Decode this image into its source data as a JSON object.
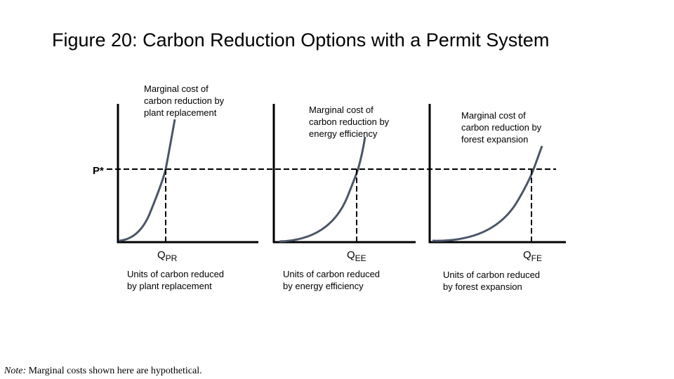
{
  "title": "Figure 20: Carbon Reduction Options with a Permit System",
  "price_label": "P*",
  "panels": [
    {
      "curve_label": [
        "Marginal cost of",
        "carbon reduction by",
        "plant replacement"
      ],
      "q_main": "Q",
      "q_sub": "PR",
      "x_label": [
        "Units of carbon reduced",
        "by plant replacement"
      ]
    },
    {
      "curve_label": [
        "Marginal cost of",
        "carbon reduction by",
        "energy efficiency"
      ],
      "q_main": "Q",
      "q_sub": "EE",
      "x_label": [
        "Units of carbon reduced",
        "by energy efficiency"
      ]
    },
    {
      "curve_label": [
        "Marginal cost of",
        "carbon reduction by",
        "forest expansion"
      ],
      "q_main": "Q",
      "q_sub": "FE",
      "x_label": [
        "Units of carbon reduced",
        "by forest expansion"
      ]
    }
  ],
  "note": {
    "prefix": "Note:",
    "text": " Marginal costs shown here are hypothetical."
  },
  "colors": {
    "curve": "#4a5568",
    "axis": "#000000",
    "dashed": "#000000"
  }
}
